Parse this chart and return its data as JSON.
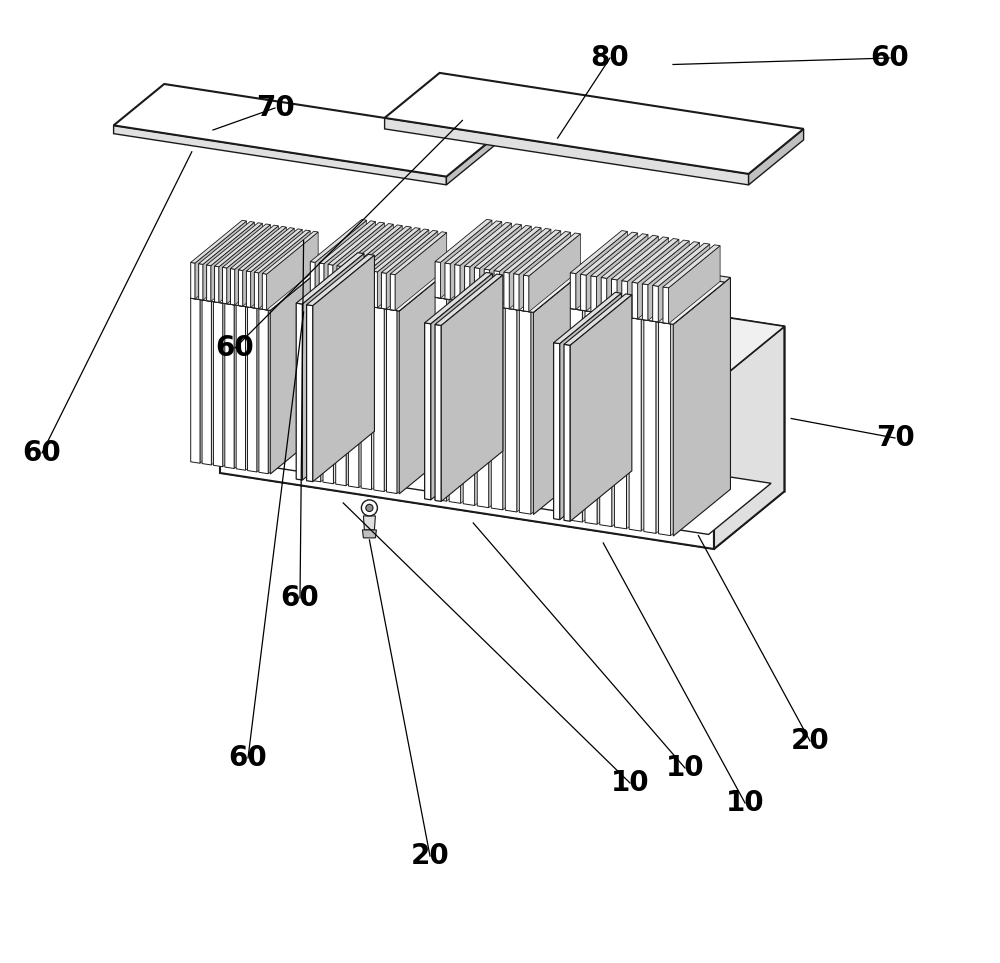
{
  "background_color": "#ffffff",
  "line_color": "#1a1a1a",
  "light_gray": "#e0e0e0",
  "mid_gray": "#c0c0c0",
  "dark_gray": "#909090",
  "very_light": "#f0f0f0",
  "line_width": 1.0,
  "thick_line": 1.5,
  "fig_width": 10.0,
  "fig_height": 9.63
}
